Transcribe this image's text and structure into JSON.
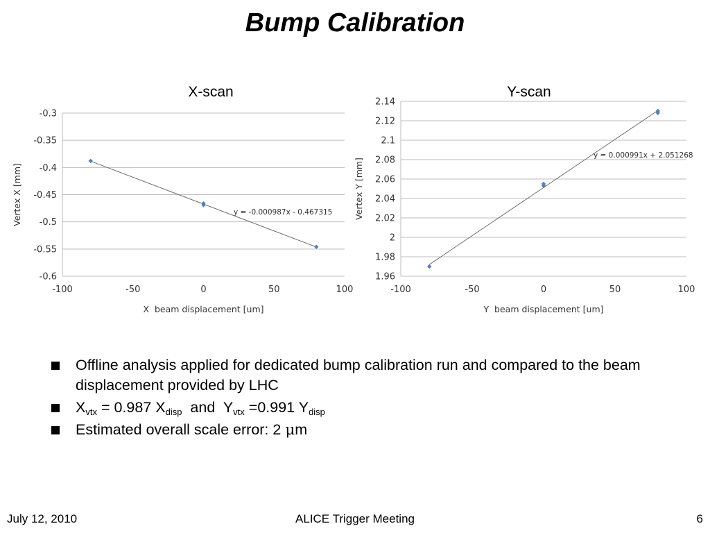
{
  "slide": {
    "title": "Bump Calibration",
    "bullets": [
      {
        "text": "Offline analysis applied for dedicated bump calibration run and compared to the beam displacement provided by LHC"
      },
      {
        "parts": [
          {
            "t": "X"
          },
          {
            "sub": "vtx"
          },
          {
            "t": " = 0.987 X"
          },
          {
            "sub": "disp"
          },
          {
            "t": "  and  Y"
          },
          {
            "sub": "vtx"
          },
          {
            "t": " =0.991 Y"
          },
          {
            "sub": "disp"
          }
        ]
      },
      {
        "parts": [
          {
            "t": "Estimated overall scale error: 2 "
          },
          {
            "greek": "μ"
          },
          {
            "t": "m"
          }
        ]
      }
    ],
    "footer": {
      "date": "July 12, 2010",
      "meeting": "ALICE Trigger Meeting",
      "page": "6"
    }
  },
  "chart_data": [
    {
      "type": "scatter",
      "title": "X-scan",
      "xlabel": "X  beam displacement [um]",
      "ylabel": "Vertex X [mm]",
      "xlim": [
        -100,
        100
      ],
      "xticks": [
        "-100",
        "-50",
        "0",
        "50",
        "100"
      ],
      "ylim": [
        -0.6,
        -0.3
      ],
      "yticks": [
        "-0.3",
        "-0.35",
        "-0.4",
        "-0.45",
        "-0.5",
        "-0.55",
        "-0.6"
      ],
      "grid": true,
      "marker_color": "#4f81bd",
      "points": [
        {
          "x": -80,
          "y": -0.388
        },
        {
          "x": 0,
          "y": -0.466
        },
        {
          "x": 0,
          "y": -0.469
        },
        {
          "x": 80,
          "y": -0.546
        }
      ],
      "trendline": {
        "slope": -0.000987,
        "intercept": -0.467315,
        "equation": "y = -0.000987x - 0.467315"
      }
    },
    {
      "type": "scatter",
      "title": "Y-scan",
      "xlabel": "Y  beam displacement [um]",
      "ylabel": "Vertex Y [mm]",
      "xlim": [
        -100,
        100
      ],
      "xticks": [
        "-100",
        "-50",
        "0",
        "50",
        "100"
      ],
      "ylim": [
        1.96,
        2.14
      ],
      "yticks": [
        "2.14",
        "2.12",
        "2.1",
        "2.08",
        "2.06",
        "2.04",
        "2.02",
        "2",
        "1.98",
        "1.96"
      ],
      "grid": true,
      "marker_color": "#4f81bd",
      "points": [
        {
          "x": -80,
          "y": 1.97
        },
        {
          "x": 0,
          "y": 2.053
        },
        {
          "x": 0,
          "y": 2.055
        },
        {
          "x": 80,
          "y": 2.128
        },
        {
          "x": 80,
          "y": 2.13
        }
      ],
      "trendline": {
        "slope": 0.000991,
        "intercept": 2.051268,
        "equation": "y = 0.000991x + 2.051268"
      }
    }
  ]
}
